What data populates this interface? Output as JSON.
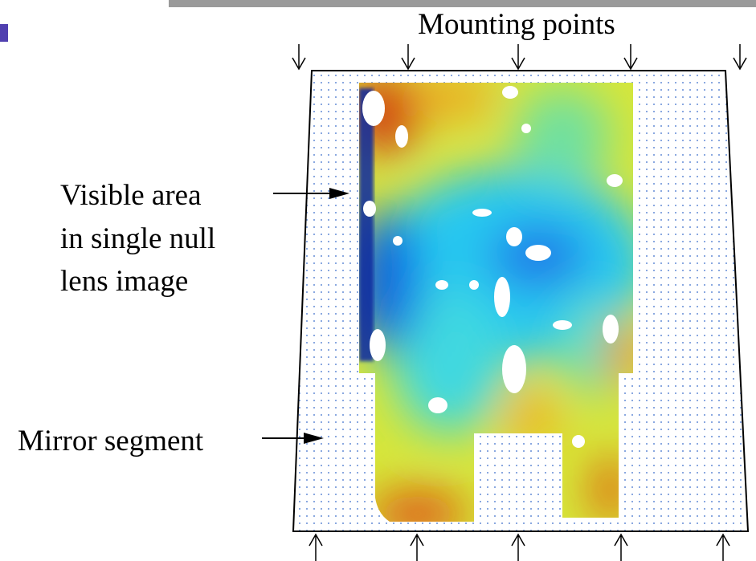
{
  "labels": {
    "mounting_points": "Mounting points",
    "visible_area": [
      "Visible area",
      "in single null",
      "lens image"
    ],
    "mirror_segment": "Mirror segment"
  }
}
